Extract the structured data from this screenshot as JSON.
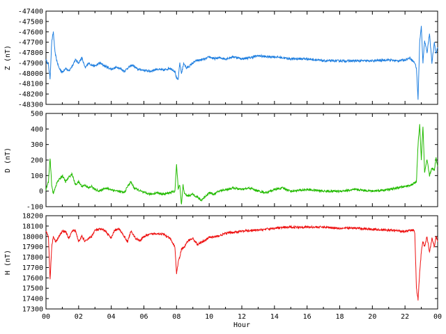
{
  "chart_data": [
    {
      "type": "line",
      "ylabel": "Z (nT)",
      "xlabel": "",
      "color": "#1f7fe0",
      "ylim": [
        -48300,
        -47400
      ],
      "yticks": [
        -48300,
        -48200,
        -48100,
        -48000,
        -47900,
        -47800,
        -47700,
        -47600,
        -47500,
        -47400
      ],
      "xlim": [
        0,
        24
      ],
      "series": [
        {
          "x": [
            0,
            0.15,
            0.25,
            0.35,
            0.45,
            0.55,
            0.65,
            0.8,
            1.0,
            1.2,
            1.4,
            1.6,
            1.8,
            2.0,
            2.2,
            2.4,
            2.6,
            2.8,
            3.0,
            3.3,
            3.6,
            4.0,
            4.4,
            4.8,
            5.0,
            5.3,
            5.6,
            6.0,
            6.4,
            6.8,
            7.2,
            7.6,
            7.9,
            8.0,
            8.1,
            8.2,
            8.3,
            8.45,
            8.6,
            8.8,
            9.0,
            9.2,
            9.5,
            9.8,
            10.0,
            10.3,
            10.6,
            11.0,
            11.5,
            12.0,
            12.5,
            13.0,
            13.5,
            14.0,
            15.0,
            16.0,
            17.0,
            18.0,
            19.0,
            20.0,
            21.0,
            21.5,
            22.0,
            22.3,
            22.6,
            22.7,
            22.8,
            22.9,
            23.0,
            23.1,
            23.2,
            23.35,
            23.5,
            23.65,
            23.8,
            23.9,
            24.0
          ],
          "values": [
            -47870,
            -47920,
            -48050,
            -47700,
            -47600,
            -47800,
            -47870,
            -47950,
            -47990,
            -47950,
            -47980,
            -47930,
            -47870,
            -47900,
            -47850,
            -47950,
            -47900,
            -47920,
            -47930,
            -47900,
            -47930,
            -47960,
            -47940,
            -47980,
            -47950,
            -47920,
            -47960,
            -47970,
            -47980,
            -47960,
            -47970,
            -47950,
            -47980,
            -48050,
            -48060,
            -47900,
            -48000,
            -47900,
            -47950,
            -47930,
            -47900,
            -47880,
            -47870,
            -47860,
            -47840,
            -47860,
            -47850,
            -47860,
            -47840,
            -47860,
            -47850,
            -47830,
            -47840,
            -47840,
            -47860,
            -47860,
            -47880,
            -47880,
            -47880,
            -47880,
            -47870,
            -47880,
            -47870,
            -47850,
            -47900,
            -47950,
            -48250,
            -47700,
            -47550,
            -47900,
            -47680,
            -47800,
            -47620,
            -47900,
            -47700,
            -47810,
            -47750
          ]
        }
      ]
    },
    {
      "type": "line",
      "ylabel": "D (nT)",
      "xlabel": "",
      "color": "#22bb00",
      "ylim": [
        -100,
        500
      ],
      "yticks": [
        -100,
        0,
        100,
        200,
        300,
        400,
        500
      ],
      "xlim": [
        0,
        24
      ],
      "series": [
        {
          "x": [
            0,
            0.15,
            0.25,
            0.35,
            0.45,
            0.55,
            0.7,
            0.85,
            1.0,
            1.2,
            1.4,
            1.6,
            1.8,
            2.0,
            2.2,
            2.4,
            2.6,
            2.8,
            3.0,
            3.3,
            3.6,
            4.0,
            4.4,
            4.8,
            5.0,
            5.2,
            5.4,
            5.6,
            5.8,
            6.0,
            6.4,
            6.8,
            7.2,
            7.6,
            7.9,
            8.0,
            8.1,
            8.2,
            8.3,
            8.4,
            8.5,
            8.7,
            9.0,
            9.3,
            9.5,
            9.8,
            10.0,
            10.3,
            10.6,
            11.0,
            11.5,
            12.0,
            12.5,
            13.0,
            13.5,
            14.0,
            14.5,
            15.0,
            16.0,
            17.0,
            18.0,
            19.0,
            20.0,
            21.0,
            21.5,
            22.0,
            22.4,
            22.7,
            22.8,
            22.9,
            23.0,
            23.1,
            23.2,
            23.35,
            23.5,
            23.65,
            23.8,
            23.9,
            24.0
          ],
          "values": [
            10,
            60,
            210,
            40,
            -20,
            20,
            60,
            80,
            100,
            60,
            90,
            110,
            40,
            60,
            30,
            40,
            20,
            30,
            10,
            0,
            20,
            10,
            0,
            -10,
            30,
            60,
            20,
            10,
            0,
            -10,
            -20,
            -10,
            -20,
            -10,
            0,
            170,
            20,
            40,
            -90,
            40,
            -20,
            -30,
            -20,
            -40,
            -60,
            -30,
            -10,
            -20,
            0,
            10,
            20,
            10,
            20,
            0,
            -10,
            10,
            20,
            0,
            10,
            0,
            0,
            10,
            0,
            10,
            20,
            30,
            40,
            60,
            300,
            430,
            200,
            420,
            120,
            200,
            100,
            150,
            130,
            220,
            160
          ]
        }
      ]
    },
    {
      "type": "line",
      "ylabel": "H (nT)",
      "xlabel": "Hour",
      "color": "#ee1111",
      "ylim": [
        17300,
        18200
      ],
      "yticks": [
        17300,
        17400,
        17500,
        17600,
        17700,
        17800,
        17900,
        18000,
        18100,
        18200
      ],
      "xlim": [
        0,
        24
      ],
      "xticks": [
        "00",
        "02",
        "04",
        "06",
        "08",
        "10",
        "12",
        "14",
        "16",
        "18",
        "20",
        "22",
        "00"
      ],
      "series": [
        {
          "x": [
            0,
            0.15,
            0.25,
            0.35,
            0.45,
            0.6,
            0.8,
            1.0,
            1.2,
            1.4,
            1.6,
            1.8,
            2.0,
            2.2,
            2.4,
            2.6,
            2.8,
            3.0,
            3.3,
            3.6,
            4.0,
            4.2,
            4.5,
            4.8,
            5.0,
            5.2,
            5.5,
            5.8,
            6.0,
            6.4,
            6.8,
            7.2,
            7.6,
            7.9,
            8.0,
            8.1,
            8.2,
            8.3,
            8.5,
            8.7,
            9.0,
            9.3,
            9.6,
            10.0,
            10.5,
            11.0,
            12.0,
            13.0,
            14.0,
            15.0,
            16.0,
            17.0,
            18.0,
            19.0,
            20.0,
            21.0,
            22.0,
            22.5,
            22.6,
            22.7,
            22.8,
            22.9,
            23.0,
            23.1,
            23.2,
            23.35,
            23.5,
            23.65,
            23.8,
            23.9,
            24.0
          ],
          "values": [
            18050,
            18000,
            17580,
            17900,
            18000,
            17950,
            18000,
            18050,
            18050,
            17980,
            18050,
            18060,
            17950,
            18000,
            17950,
            17980,
            18000,
            18060,
            18070,
            18060,
            17980,
            18060,
            18070,
            18000,
            17950,
            18050,
            17980,
            17960,
            18000,
            18020,
            18030,
            18020,
            17980,
            17900,
            17640,
            17750,
            17800,
            17880,
            17900,
            17960,
            17980,
            17920,
            17950,
            17990,
            18000,
            18030,
            18050,
            18060,
            18080,
            18090,
            18090,
            18090,
            18080,
            18080,
            18070,
            18060,
            18050,
            18060,
            18040,
            17500,
            17390,
            17650,
            17850,
            17950,
            17900,
            18000,
            17850,
            17980,
            17900,
            18000,
            17950
          ]
        }
      ]
    }
  ]
}
